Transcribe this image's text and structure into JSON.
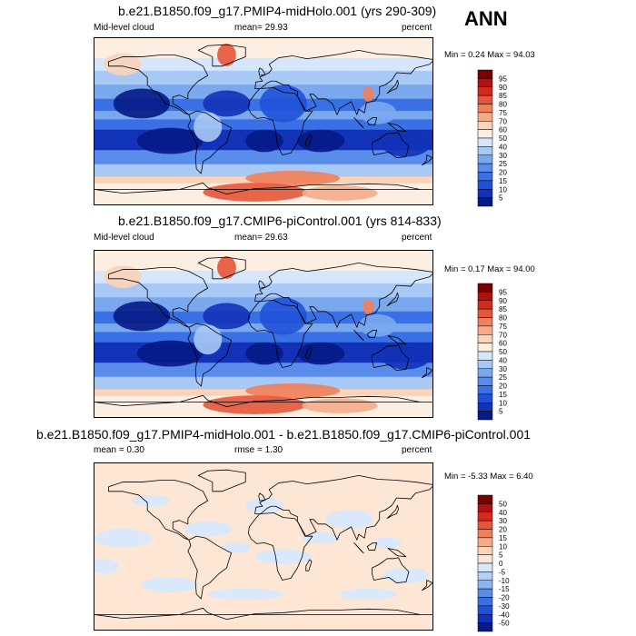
{
  "header": {
    "season": "ANN"
  },
  "panels": [
    {
      "title": "b.e21.B1850.f09_g17.PMIP4-midHolo.001 (yrs 290-309)",
      "left_label": "Mid-level cloud",
      "mean_label": "mean=  29.93",
      "units": "percent",
      "minmax": "Min =   0.24 Max =  94.03",
      "kind": "field",
      "colorbar_levels": [
        "95",
        "90",
        "85",
        "80",
        "75",
        "70",
        "60",
        "50",
        "40",
        "30",
        "25",
        "20",
        "15",
        "10",
        "5"
      ],
      "colorbar_colors": [
        "#7a0000",
        "#b01010",
        "#d42a1e",
        "#e6553a",
        "#f0805a",
        "#f6ab88",
        "#fad3b8",
        "#fdeee2",
        "#d6e6fb",
        "#a8c8f5",
        "#7aa8ef",
        "#5a8ceb",
        "#3a70e6",
        "#2050d9",
        "#1232b8",
        "#061a86"
      ]
    },
    {
      "title": "b.e21.B1850.f09_g17.CMIP6-piControl.001 (yrs 814-833)",
      "left_label": "Mid-level cloud",
      "mean_label": "mean=  29.63",
      "units": "percent",
      "minmax": "Min =   0.17 Max =  94.00",
      "kind": "field",
      "colorbar_levels": [
        "95",
        "90",
        "85",
        "80",
        "75",
        "70",
        "60",
        "50",
        "40",
        "30",
        "25",
        "20",
        "15",
        "10",
        "5"
      ],
      "colorbar_colors": [
        "#7a0000",
        "#b01010",
        "#d42a1e",
        "#e6553a",
        "#f0805a",
        "#f6ab88",
        "#fad3b8",
        "#fdeee2",
        "#d6e6fb",
        "#a8c8f5",
        "#7aa8ef",
        "#5a8ceb",
        "#3a70e6",
        "#2050d9",
        "#1232b8",
        "#061a86"
      ]
    },
    {
      "title": "b.e21.B1850.f09_g17.PMIP4-midHolo.001 - b.e21.B1850.f09_g17.CMIP6-piControl.001",
      "left_label": "mean =   0.30",
      "mean_label": "rmse =   1.30",
      "units": "percent",
      "minmax": "Min =  -5.33 Max =   6.40",
      "kind": "diff",
      "colorbar_levels": [
        "50",
        "40",
        "30",
        "20",
        "15",
        "10",
        "5",
        "0",
        "-5",
        "-10",
        "-15",
        "-20",
        "-30",
        "-40",
        "-50"
      ],
      "colorbar_colors": [
        "#7a0000",
        "#b01010",
        "#d42a1e",
        "#e6553a",
        "#f0805a",
        "#f6ab88",
        "#fad3b8",
        "#fde6d4",
        "#d9e8fb",
        "#b4d0f7",
        "#8cb4f1",
        "#5a8ceb",
        "#3a70e6",
        "#2050d9",
        "#1232b8",
        "#061a86"
      ]
    }
  ]
}
